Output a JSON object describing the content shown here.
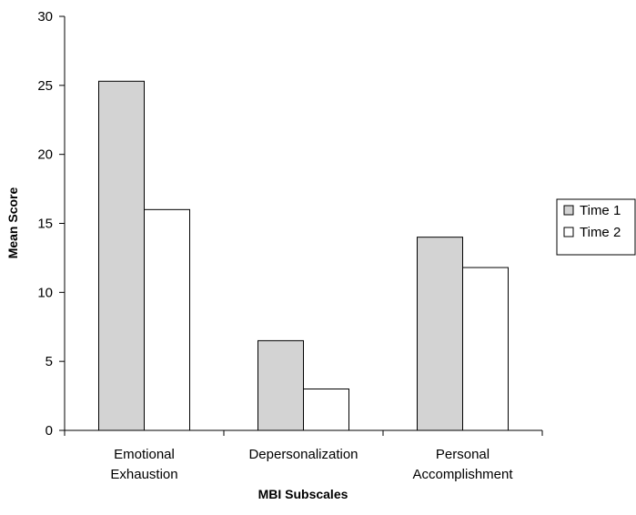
{
  "chart_data": {
    "type": "bar",
    "title": "",
    "xlabel": "MBI Subscales",
    "ylabel": "Mean Score",
    "ylim": [
      0,
      30
    ],
    "yticks": [
      0,
      5,
      10,
      15,
      20,
      25,
      30
    ],
    "grid": false,
    "legend_position": "right",
    "categories": [
      [
        "Emotional",
        "Exhaustion"
      ],
      [
        "Depersonalization"
      ],
      [
        "Personal",
        "Accomplishment"
      ]
    ],
    "series": [
      {
        "name": "Time 1",
        "color": "#d3d3d3",
        "values": [
          25.3,
          6.5,
          14.0
        ]
      },
      {
        "name": "Time 2",
        "color": "#ffffff",
        "values": [
          16.0,
          3.0,
          11.8
        ]
      }
    ]
  }
}
